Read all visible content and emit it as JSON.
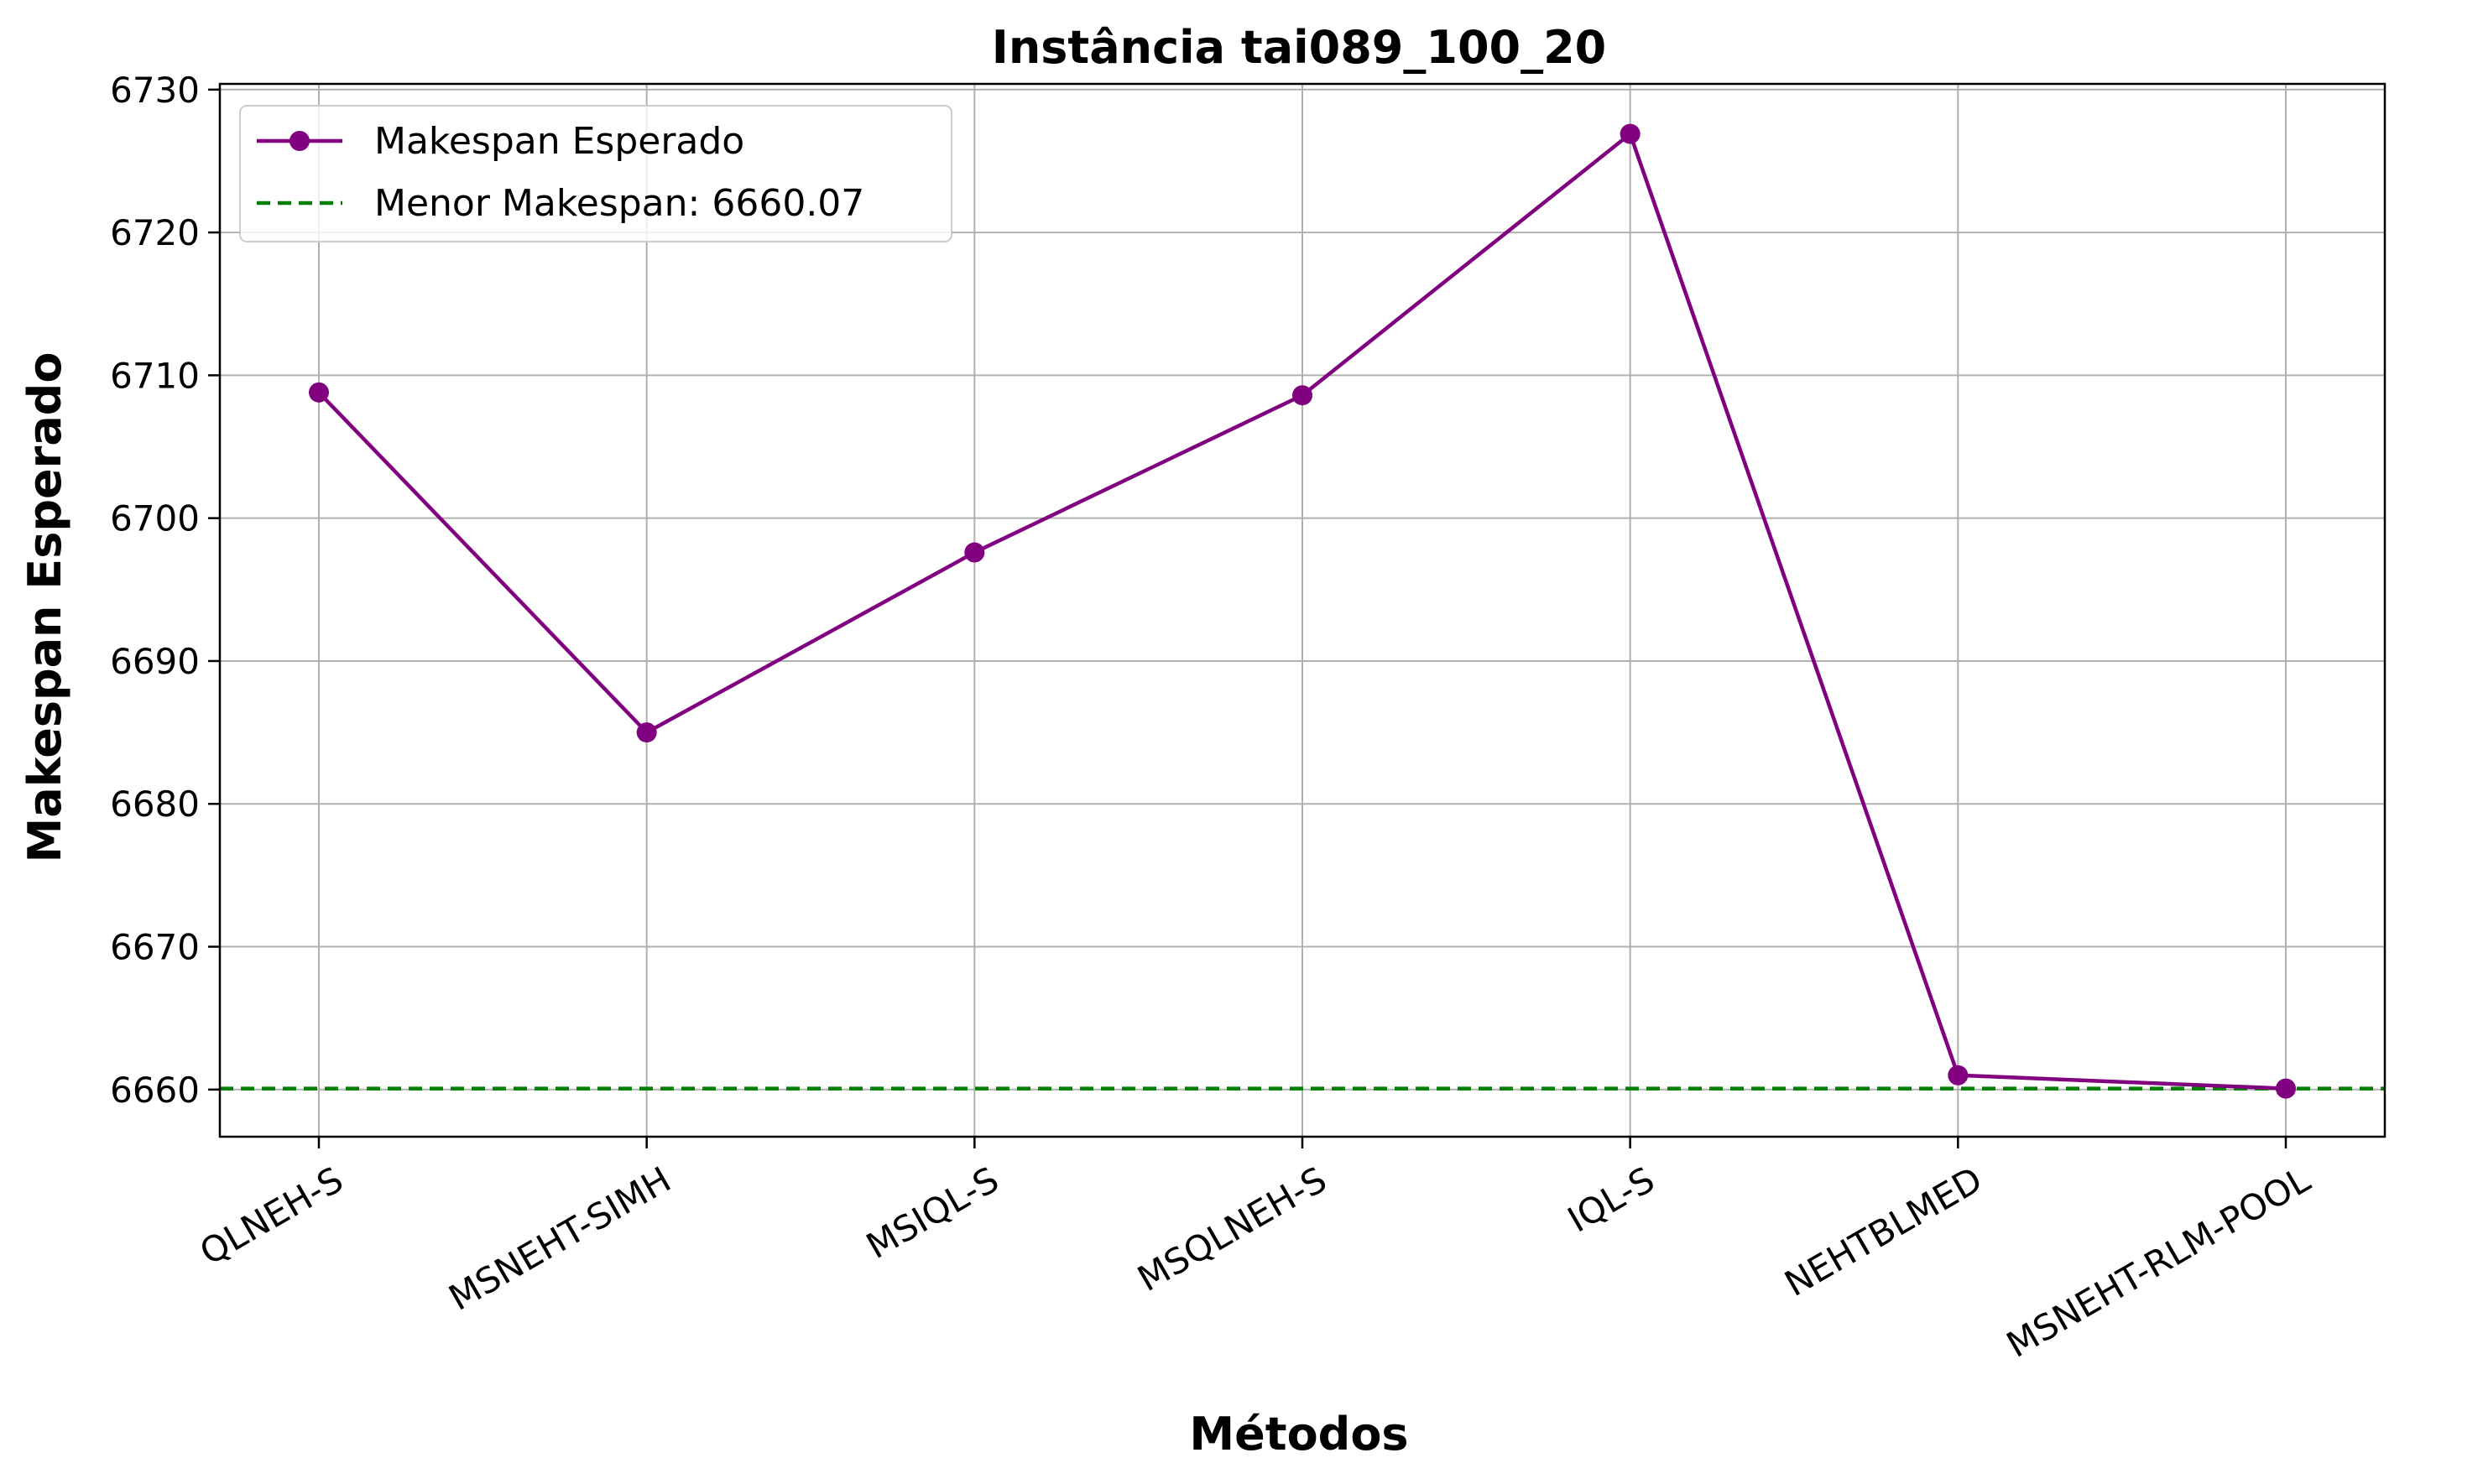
{
  "chart_data": {
    "type": "line",
    "title": "Instância tai089_100_20",
    "xlabel": "Métodos",
    "ylabel": "Makespan Esperado",
    "categories": [
      "QLNEH-S",
      "MSNEHT-SIMH",
      "MSIQL-S",
      "MSQLNEH-S",
      "IQL-S",
      "NEHTBLMED",
      "MSNEHT-RLM-POOL"
    ],
    "series": [
      {
        "name": "Makespan Esperado",
        "color": "#800080",
        "marker": "circle",
        "values": [
          6708.8,
          6685.0,
          6697.6,
          6708.6,
          6726.9,
          6661.0,
          6660.07
        ]
      }
    ],
    "reference_line": {
      "label": "Menor Makespan: 6660.07",
      "value": 6660.07,
      "color": "#008000",
      "style": "dashed"
    },
    "ylim": [
      6656.7,
      6730.4
    ],
    "yticks": [
      6660,
      6670,
      6680,
      6690,
      6700,
      6710,
      6720,
      6730
    ],
    "grid": true,
    "legend_position": "top-left"
  }
}
